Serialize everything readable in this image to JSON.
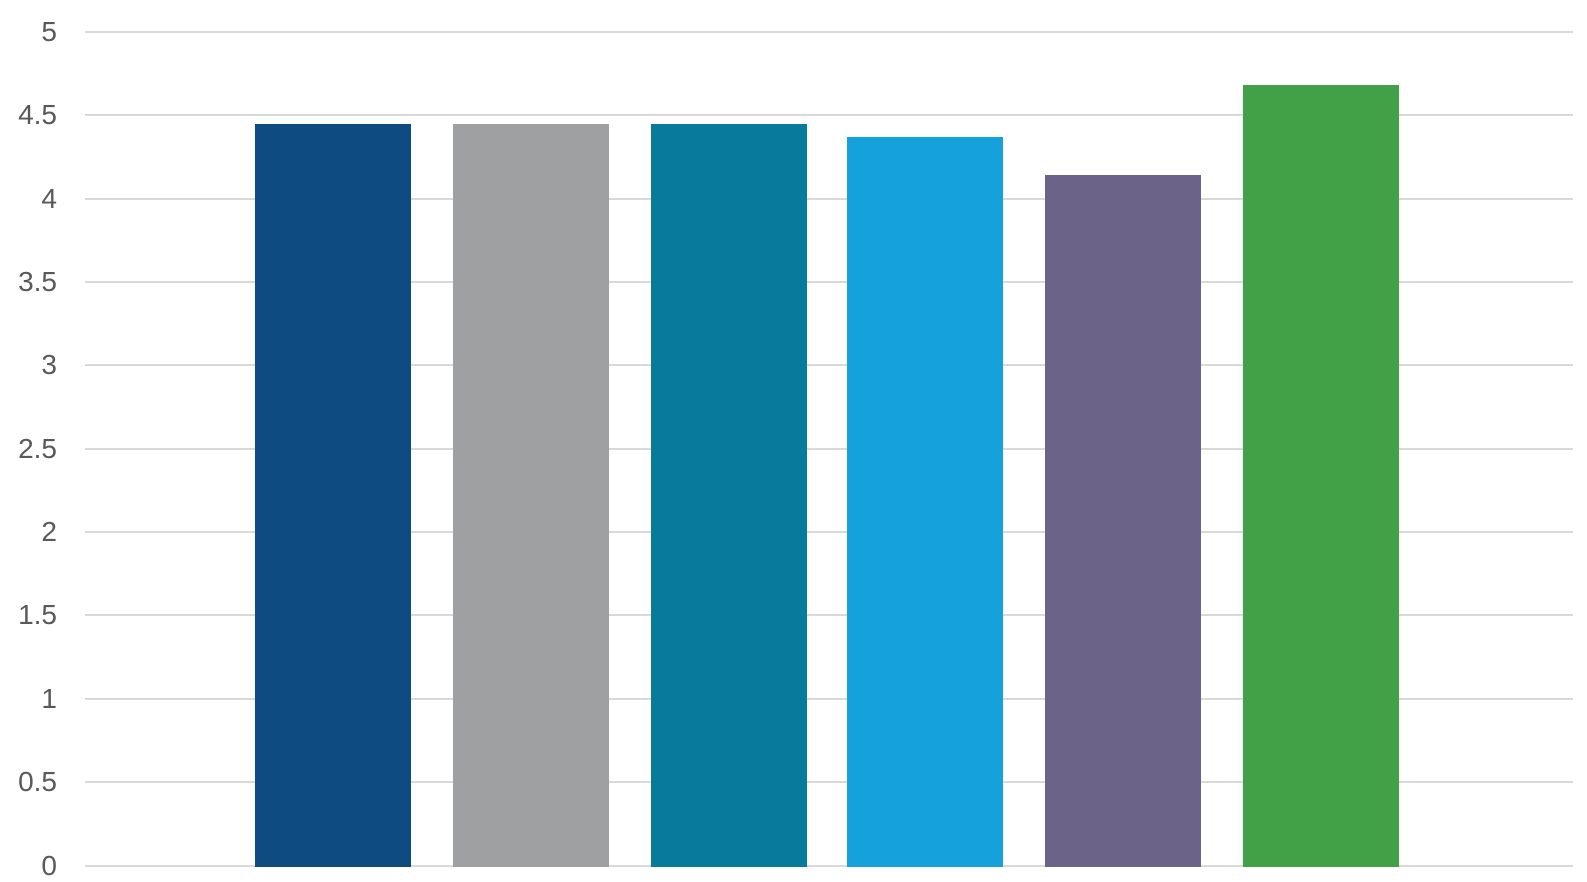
{
  "chart_data": {
    "type": "bar",
    "title": "",
    "xlabel": "",
    "ylabel": "",
    "categories": [
      "",
      "",
      "",
      "",
      "",
      ""
    ],
    "values": [
      4.45,
      4.45,
      4.45,
      4.37,
      4.14,
      4.68
    ],
    "bar_colors": [
      "#0D4B80",
      "#9FA0A1",
      "#087B9D",
      "#15A1DB",
      "#6C6388",
      "#42A046"
    ],
    "ylim": [
      0,
      5
    ],
    "y_ticks": [
      5,
      4.5,
      4,
      3.5,
      3,
      2.5,
      2,
      1.5,
      1,
      0.5,
      0
    ],
    "y_tick_labels": [
      "5",
      "4.5",
      "4",
      "3.5",
      "3",
      "2.5",
      "2",
      "1.5",
      "1",
      "0.5",
      "0"
    ],
    "grid": true,
    "legend": false,
    "gridline_color": "#D9D9D9",
    "tick_label_color": "#595959",
    "background_color": "#FFFFFF"
  }
}
